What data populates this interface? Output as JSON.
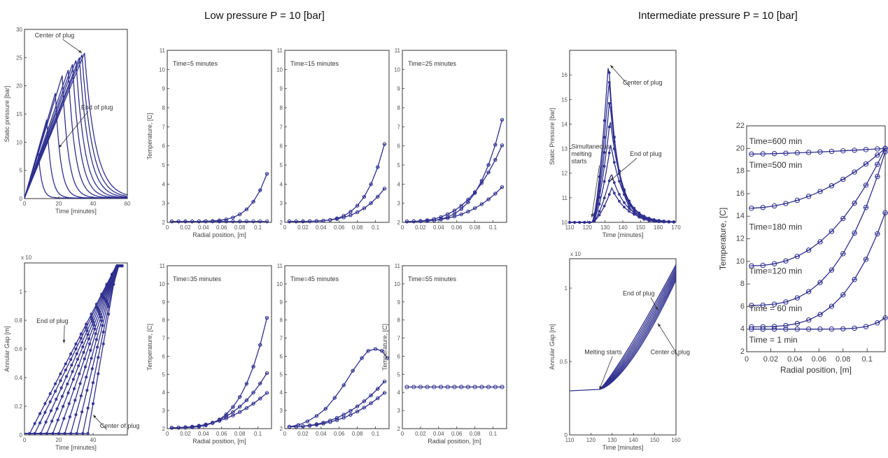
{
  "headers": {
    "low": "Low pressure  P = 10 [bar]",
    "intermediate": "Intermediate pressure P = 10 [bar]"
  },
  "colors": {
    "series": "#2f2f8f",
    "frame": "#333333",
    "text": "#333333"
  },
  "chart_data": [
    {
      "id": "p1",
      "type": "line",
      "title": "",
      "xlabel": "Time [minutes]",
      "ylabel": "Static pressure [bar]",
      "xlim": [
        0,
        60
      ],
      "ylim": [
        0,
        30
      ],
      "xticks": [
        0,
        20,
        40,
        60
      ],
      "xticklabels": [
        "0",
        "20",
        "40",
        "60"
      ],
      "yticks": [
        0,
        5,
        10,
        15,
        20,
        25,
        30
      ],
      "yticklabels": [
        "0",
        "5",
        "10",
        "15",
        "20",
        "25",
        "30"
      ],
      "peaks": [
        [
          8,
          8.5
        ],
        [
          13,
          14
        ],
        [
          18,
          18.7
        ],
        [
          22,
          21.8
        ],
        [
          25.5,
          22.8
        ],
        [
          28,
          23.8
        ],
        [
          30,
          24.5
        ],
        [
          32,
          25
        ],
        [
          33.5,
          25.5
        ],
        [
          35,
          25.8
        ]
      ],
      "annotations": [
        {
          "text": "Center of plug",
          "x": 6,
          "y": 28.6,
          "ax": 33.5,
          "ay": 25.8
        },
        {
          "text": "End of plug",
          "x": 33,
          "y": 15.8,
          "ax": 20,
          "ay": 9
        }
      ]
    },
    {
      "id": "t1",
      "type": "line",
      "title": "Time=5 minutes",
      "xlabel": "Radial position, [m]",
      "ylabel": "Temperature, [C]",
      "xlim": [
        0,
        0.115
      ],
      "ylim": [
        2,
        11
      ],
      "xticks": [
        0,
        0.02,
        0.04,
        0.06,
        0.08,
        0.1
      ],
      "xticklabels": [
        "0",
        "0.02",
        "0.04",
        "0.06",
        "0.08",
        "0.1"
      ],
      "yticks": [
        2,
        3,
        4,
        5,
        6,
        7,
        8,
        9,
        10,
        11
      ],
      "yticklabels": [
        "2",
        "3",
        "4",
        "5",
        "6",
        "7",
        "8",
        "9",
        "10",
        "11"
      ],
      "curves": [
        {
          "base": 2.05,
          "top": 2.05,
          "ptop": 6
        },
        {
          "base": 2.05,
          "top": 5.3,
          "ptop": 6
        }
      ]
    },
    {
      "id": "t2",
      "type": "line",
      "title": "Time=15 minutes",
      "xlabel": "",
      "ylabel": "",
      "xlim": [
        0,
        0.115
      ],
      "ylim": [
        2,
        11
      ],
      "xticks": [
        0,
        0.02,
        0.04,
        0.06,
        0.08,
        0.1
      ],
      "xticklabels": [
        "0",
        "0.02",
        "0.04",
        "0.06",
        "0.08",
        "0.1"
      ],
      "yticks": [
        2,
        3,
        4,
        5,
        6,
        7,
        8,
        9,
        10,
        11
      ],
      "yticklabels": [
        "2",
        "3",
        "4",
        "5",
        "6",
        "7",
        "8",
        "9",
        "10",
        "11"
      ],
      "curves": [
        {
          "base": 2.05,
          "top": 4.1,
          "ptop": 4
        },
        {
          "base": 2.05,
          "top": 7.1,
          "ptop": 5
        }
      ]
    },
    {
      "id": "t3",
      "type": "line",
      "title": "Time=25 minutes",
      "xlabel": "",
      "ylabel": "",
      "xlim": [
        0,
        0.115
      ],
      "ylim": [
        2,
        11
      ],
      "xticks": [
        0,
        0.02,
        0.04,
        0.06,
        0.08,
        0.1
      ],
      "xticklabels": [
        "0",
        "0.02",
        "0.04",
        "0.06",
        "0.08",
        "0.1"
      ],
      "yticks": [
        2,
        3,
        4,
        5,
        6,
        7,
        8,
        9,
        10,
        11
      ],
      "yticklabels": [
        "2",
        "3",
        "4",
        "5",
        "6",
        "7",
        "8",
        "9",
        "10",
        "11"
      ],
      "curves": [
        {
          "base": 2.05,
          "top": 4.1,
          "ptop": 3
        },
        {
          "base": 2.05,
          "top": 6.6,
          "ptop": 3
        },
        {
          "base": 2.05,
          "top": 8.4,
          "ptop": 4
        }
      ]
    },
    {
      "id": "t4",
      "type": "line",
      "title": "Time=35 minutes",
      "xlabel": "Radial position, [m]",
      "ylabel": "Temperature, [C]",
      "xlim": [
        0,
        0.115
      ],
      "ylim": [
        2,
        11
      ],
      "xticks": [
        0,
        0.02,
        0.04,
        0.06,
        0.08,
        0.1
      ],
      "xticklabels": [
        "0",
        "0.02",
        "0.04",
        "0.06",
        "0.08",
        "0.1"
      ],
      "yticks": [
        2,
        3,
        4,
        5,
        6,
        7,
        8,
        9,
        10,
        11
      ],
      "yticklabels": [
        "2",
        "3",
        "4",
        "5",
        "6",
        "7",
        "8",
        "9",
        "10",
        "11"
      ],
      "curves": [
        {
          "base": 2.05,
          "top": 4.2,
          "ptop": 2.5
        },
        {
          "base": 2.05,
          "top": 5.5,
          "ptop": 3
        },
        {
          "base": 2.05,
          "top": 9.3,
          "ptop": 4
        }
      ]
    },
    {
      "id": "t5",
      "type": "line",
      "title": "Time=45 minutes",
      "xlabel": "",
      "ylabel": "",
      "xlim": [
        0,
        0.115
      ],
      "ylim": [
        2,
        11
      ],
      "xticks": [
        0,
        0.02,
        0.04,
        0.06,
        0.08,
        0.1
      ],
      "xticklabels": [
        "0",
        "0.02",
        "0.04",
        "0.06",
        "0.08",
        "0.1"
      ],
      "yticks": [
        2,
        3,
        4,
        5,
        6,
        7,
        8,
        9,
        10,
        11
      ],
      "yticklabels": [
        "2",
        "3",
        "4",
        "5",
        "6",
        "7",
        "8",
        "9",
        "10",
        "11"
      ],
      "curves": [
        {
          "base": 2.1,
          "top": 4.2,
          "ptop": 2.5
        },
        {
          "base": 2.1,
          "top": 4.9,
          "ptop": 2.5
        }
      ],
      "peaked": {
        "x": [
          0.005,
          0.015,
          0.025,
          0.035,
          0.045,
          0.055,
          0.065,
          0.075,
          0.085,
          0.092,
          0.1,
          0.107,
          0.113
        ],
        "y": [
          2.1,
          2.2,
          2.4,
          2.7,
          3.1,
          3.7,
          4.4,
          5.2,
          5.9,
          6.3,
          6.4,
          6.3,
          5.9
        ]
      }
    },
    {
      "id": "t6",
      "type": "line",
      "title": "Time=55 minutes",
      "xlabel": "Radial position, [m]",
      "ylabel": "Temperature, [C]",
      "xlim": [
        0,
        0.115
      ],
      "ylim": [
        2,
        11
      ],
      "xticks": [
        0,
        0.02,
        0.04,
        0.06,
        0.08,
        0.1
      ],
      "xticklabels": [
        "0",
        "0.02",
        "0.04",
        "0.06",
        "0.08",
        "0.1"
      ],
      "yticks": [
        2,
        3,
        4,
        5,
        6,
        7,
        8,
        9,
        10,
        11
      ],
      "yticklabels": [
        "2",
        "3",
        "4",
        "5",
        "6",
        "7",
        "8",
        "9",
        "10",
        "11"
      ],
      "flat": 4.3
    },
    {
      "id": "g1",
      "type": "line",
      "title": "",
      "xlabel": "Time [minutes]",
      "ylabel": "Annular Gap [m]",
      "xlim": [
        0,
        60
      ],
      "ylim": [
        0,
        1.2
      ],
      "xticks": [
        0,
        20,
        40
      ],
      "xticklabels": [
        "0",
        "20",
        "40"
      ],
      "yticks": [
        0,
        0.2,
        0.4,
        0.6,
        0.8,
        1
      ],
      "yticklabels": [
        "0",
        "0.2",
        "0.4",
        "0.6",
        "0.8",
        "1"
      ],
      "starts": [
        3,
        6,
        9.5,
        13,
        16.5,
        20,
        23.5,
        27,
        30.5,
        34,
        37
      ],
      "annotations": [
        {
          "text": "End of plug",
          "x": 7,
          "y": 0.78,
          "ax": 23,
          "ay": 0.64
        },
        {
          "text": "Center of plug",
          "x": 44,
          "y": 0.05,
          "ax": 40,
          "ay": 0.14
        }
      ]
    },
    {
      "id": "p2",
      "type": "line",
      "title": "",
      "xlabel": "Time [minutes]",
      "ylabel": "Static Pressure [bar]",
      "xlim": [
        110,
        170
      ],
      "ylim": [
        10,
        17
      ],
      "xticks": [
        110,
        120,
        130,
        140,
        150,
        160,
        170
      ],
      "xticklabels": [
        "110",
        "120",
        "130",
        "140",
        "150",
        "160",
        "170"
      ],
      "yticks": [
        10,
        11,
        12,
        13,
        14,
        15,
        16
      ],
      "yticklabels": [
        "10",
        "11",
        "12",
        "13",
        "14",
        "15",
        "16"
      ],
      "peaks": [
        16.6,
        15.8,
        15.0,
        14.2,
        13.2,
        12.0,
        11.4
      ],
      "annotations": [
        {
          "text": "Center of plug",
          "x": 140,
          "y": 15.6,
          "ax": 133,
          "ay": 16.4
        },
        {
          "text": "End of plug",
          "x": 144,
          "y": 12.7,
          "ax": 133,
          "ay": 11.7
        },
        {
          "text": "Simultaneous",
          "x": 111,
          "y": 13.0,
          "ax": 0,
          "ay": 0
        },
        {
          "text": "melting",
          "x": 111,
          "y": 12.7,
          "ax": 0,
          "ay": 0
        },
        {
          "text": "starts",
          "x": 111,
          "y": 12.4,
          "ax": 122.5,
          "ay": 10.2
        }
      ]
    },
    {
      "id": "g2",
      "type": "line",
      "title": "",
      "xlabel": "Time [minutes]",
      "ylabel": "Annular Gap [m]",
      "xlim": [
        110,
        160
      ],
      "ylim": [
        0,
        1.2
      ],
      "xticks": [
        110,
        120,
        130,
        140,
        150,
        160
      ],
      "xticklabels": [
        "110",
        "120",
        "130",
        "140",
        "150",
        "160"
      ],
      "yticks": [
        0,
        0.5,
        1
      ],
      "yticklabels": [
        "0",
        "0.5",
        "1"
      ],
      "annotations": [
        {
          "text": "End of plug",
          "x": 135,
          "y": 0.95,
          "ax": 151.5,
          "ay": 0.85
        },
        {
          "text": "Melting starts",
          "x": 117,
          "y": 0.55,
          "ax": 124,
          "ay": 0.31
        },
        {
          "text": "Center of plug",
          "x": 148,
          "y": 0.55,
          "ax": 151.5,
          "ay": 0.76
        }
      ]
    },
    {
      "id": "big",
      "type": "line",
      "title": "",
      "xlabel": "Radial position, [m]",
      "ylabel": "Temperature, [C]",
      "xlim": [
        0,
        0.115
      ],
      "ylim": [
        2,
        22
      ],
      "xticks": [
        0,
        0.02,
        0.04,
        0.06,
        0.08,
        0.1
      ],
      "xticklabels": [
        "0",
        "0.02",
        "0.04",
        "0.06",
        "0.08",
        "0.1"
      ],
      "yticks": [
        2,
        4,
        6,
        8,
        10,
        12,
        14,
        16,
        18,
        20,
        22
      ],
      "yticklabels": [
        "2",
        "4",
        "6",
        "8",
        "10",
        "12",
        "14",
        "16",
        "18",
        "20",
        "22"
      ],
      "series": [
        {
          "name": "Time=600 min",
          "base": 19.5,
          "top": 20.0,
          "p": 1.5,
          "ly": 20.4
        },
        {
          "name": "Time=500 min",
          "base": 14.7,
          "top": 20.0,
          "p": 2.0,
          "ly": 18.3
        },
        {
          "name": "Time=180 min",
          "base": 9.6,
          "top": 20.0,
          "p": 2.5,
          "ly": 12.8
        },
        {
          "name": "Time=120 min",
          "base": 6.1,
          "top": 19.7,
          "p": 3.0,
          "ly": 8.9
        },
        {
          "name": "Time = 60 min",
          "base": 4.2,
          "top": 14.3,
          "p": 3.5,
          "ly": 5.6
        },
        {
          "name": "Time = 1 min",
          "base": 4.0,
          "top": 5.0,
          "p": 10.0,
          "ly": 2.8
        }
      ]
    }
  ]
}
